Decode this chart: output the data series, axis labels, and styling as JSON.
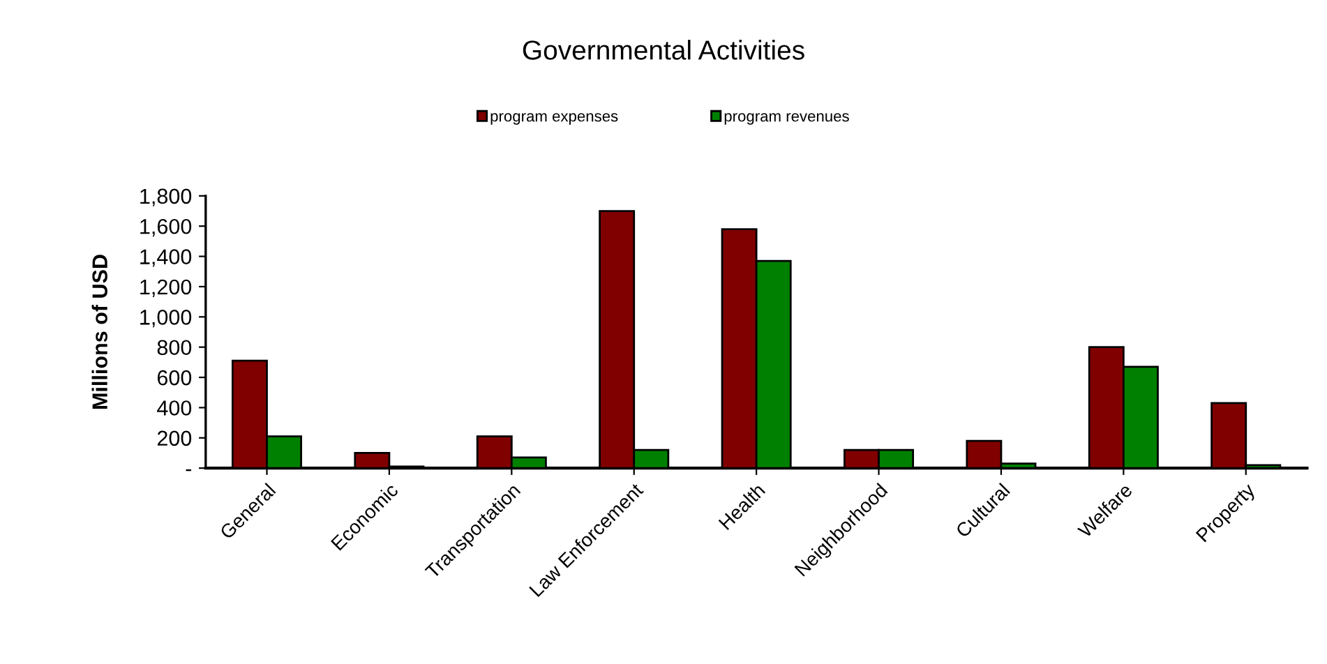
{
  "chart_data": {
    "type": "bar",
    "title": "Governmental Activities",
    "ylabel": "Millions of USD",
    "categories": [
      "General",
      "Economic",
      "Transportation",
      "Law Enforcement",
      "Health",
      "Neighborhood",
      "Cultural",
      "Welfare",
      "Property"
    ],
    "series": [
      {
        "name": "program expenses",
        "color": "#800000",
        "values": [
          710,
          100,
          210,
          1700,
          1580,
          120,
          180,
          800,
          430
        ]
      },
      {
        "name": "program revenues",
        "color": "#008000",
        "values": [
          210,
          10,
          70,
          120,
          1370,
          120,
          30,
          670,
          20
        ]
      }
    ],
    "ylim": [
      0,
      1800
    ],
    "yticks": [
      {
        "value": 0,
        "label": "-"
      },
      {
        "value": 200,
        "label": "200"
      },
      {
        "value": 400,
        "label": "400"
      },
      {
        "value": 600,
        "label": "600"
      },
      {
        "value": 800,
        "label": "800"
      },
      {
        "value": 1000,
        "label": "1,000"
      },
      {
        "value": 1200,
        "label": "1,200"
      },
      {
        "value": 1400,
        "label": "1,400"
      },
      {
        "value": 1600,
        "label": "1,600"
      },
      {
        "value": 1800,
        "label": "1,800"
      }
    ],
    "grid": false,
    "legend": "top"
  }
}
